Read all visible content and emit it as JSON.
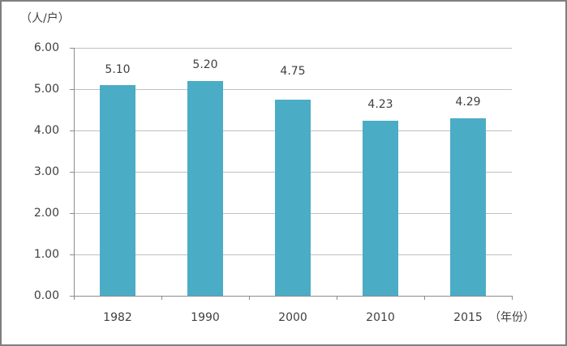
{
  "chart_data": {
    "type": "bar",
    "title": "",
    "y_unit_label": "（人/户）",
    "x_unit_label": "（年份）",
    "categories": [
      "1982",
      "1990",
      "2000",
      "2010",
      "2015"
    ],
    "values": [
      5.1,
      5.2,
      4.75,
      4.23,
      4.29
    ],
    "value_labels": [
      "5.10",
      "5.20",
      "4.75",
      "4.23",
      "4.29"
    ],
    "ylim": [
      0,
      6
    ],
    "ytick_interval": 1,
    "ytick_labels": [
      "0.00",
      "1.00",
      "2.00",
      "3.00",
      "4.00",
      "5.00",
      "6.00"
    ],
    "grid": true,
    "legend": "none",
    "bar_color": "#4BACC6"
  },
  "colors": {
    "bar": "#4BACC6",
    "gridline": "#BFBFBF",
    "axis": "#8C8C8C",
    "text": "#404040",
    "frame_border": "#7F7F7F",
    "background": "#FFFFFF"
  }
}
